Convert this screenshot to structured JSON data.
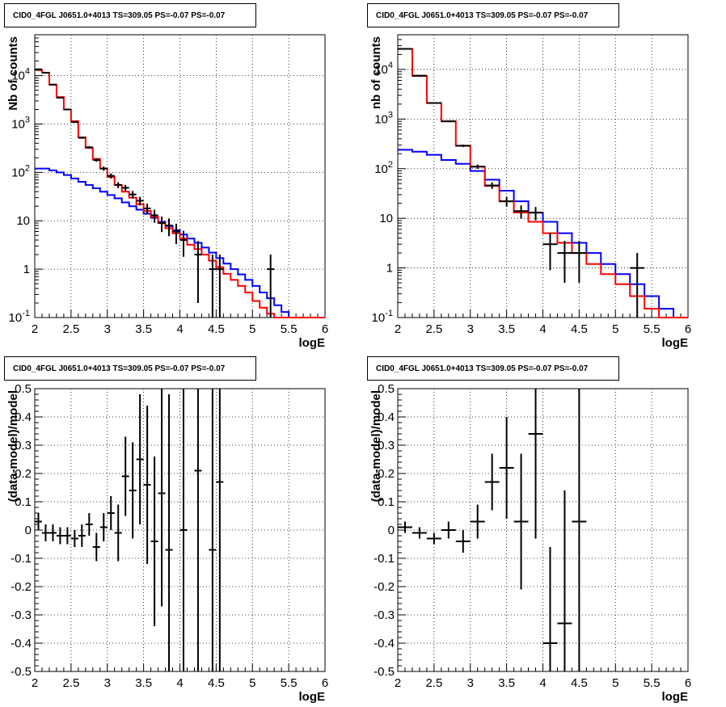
{
  "panels": [
    {
      "title": "CID0_4FGL J0651.0+4013 TS=309.05 PS=-0.07 PS=-0.07",
      "xlabel": "logE",
      "ylabel": "Nb of counts"
    },
    {
      "title": "CID0_4FGL J0651.0+4013 TS=309.05 PS=-0.07 PS=-0.07",
      "xlabel": "logE",
      "ylabel": "nb of counts"
    },
    {
      "title": "CID0_4FGL J0651.0+4013 TS=309.05 PS=-0.07 PS=-0.07",
      "xlabel": "logE",
      "ylabel": "(data-model)/model"
    },
    {
      "title": "CID0_4FGL J0651.0+4013 TS=309.05 PS=-0.07 PS=-0.07",
      "xlabel": "logE",
      "ylabel": "(data-model)/model"
    }
  ],
  "chart_data": [
    {
      "type": "line",
      "title": "CID0_4FGL J0651.0+4013 TS=309.05 PS=-0.07 PS=-0.07",
      "xlabel": "logE",
      "ylabel": "Nb of counts",
      "xlim": [
        2,
        6
      ],
      "ylim": [
        0.1,
        70000
      ],
      "yscale": "log",
      "grid": true,
      "xticks": [
        "2",
        "2.5",
        "3",
        "3.5",
        "4",
        "4.5",
        "5",
        "5.5",
        "6"
      ],
      "yticks": [
        "10^-1",
        "1",
        "10",
        "10^2",
        "10^3",
        "10^4"
      ],
      "colors": {
        "total": "#ff0000",
        "background": "#0000ff",
        "data": "#000000"
      },
      "bin_edges": [
        2.0,
        2.1,
        2.2,
        2.3,
        2.4,
        2.5,
        2.6,
        2.7,
        2.8,
        2.9,
        3.0,
        3.1,
        3.2,
        3.3,
        3.4,
        3.5,
        3.6,
        3.7,
        3.8,
        3.9,
        4.0,
        4.1,
        4.2,
        4.3,
        4.4,
        4.5,
        4.6,
        4.7,
        4.8,
        4.9,
        5.0,
        5.1,
        5.2,
        5.3,
        5.4,
        5.5,
        5.6,
        5.7,
        5.8,
        5.9,
        6.0
      ],
      "series": [
        {
          "type": "step",
          "values": [
            13000,
            11500,
            6500,
            3600,
            2000,
            1150,
            530,
            320,
            190,
            120,
            80,
            55,
            40,
            30,
            22,
            16,
            12,
            9,
            7,
            5.5,
            4.3,
            3.2,
            2.6,
            2.0,
            1.5,
            1.1,
            0.8,
            0.6,
            0.45,
            0.33,
            0.22,
            0.16,
            0.12,
            0.1,
            0.1,
            0.1,
            0.1,
            0.1,
            0.1,
            0.1
          ]
        },
        {
          "type": "step",
          "values": [
            120,
            120,
            110,
            100,
            88,
            75,
            64,
            55,
            47,
            40,
            34,
            29,
            24,
            20,
            17,
            14,
            11.5,
            9.5,
            7.8,
            6.4,
            5.2,
            4.3,
            3.5,
            2.8,
            2.2,
            1.7,
            1.3,
            1.0,
            0.78,
            0.6,
            0.45,
            0.33,
            0.25,
            0.18,
            0.13,
            0.1,
            0.1,
            0.1,
            0.1,
            0.1
          ]
        },
        {
          "type": "points",
          "x": [
            2.05,
            2.15,
            2.25,
            2.35,
            2.45,
            2.55,
            2.65,
            2.75,
            2.85,
            2.95,
            3.05,
            3.15,
            3.25,
            3.35,
            3.45,
            3.55,
            3.65,
            3.75,
            3.85,
            3.95,
            4.05,
            4.25,
            4.45,
            4.55,
            5.25
          ],
          "y": [
            13500,
            11500,
            6500,
            3500,
            2000,
            1100,
            520,
            330,
            180,
            120,
            85,
            55,
            48,
            35,
            26,
            18,
            13,
            9,
            8,
            6,
            4,
            2,
            1,
            1,
            1
          ],
          "err_low": [
            0.01,
            0.01,
            0.01,
            0.02,
            0.02,
            0.03,
            0.05,
            0.06,
            0.08,
            0.1,
            0.12,
            0.14,
            0.15,
            0.18,
            0.2,
            0.25,
            0.3,
            0.35,
            0.4,
            0.45,
            0.55,
            0.9,
            0.99,
            0.99,
            0.99
          ],
          "err_high": [
            0.01,
            0.01,
            0.01,
            0.02,
            0.02,
            0.03,
            0.05,
            0.06,
            0.08,
            0.1,
            0.12,
            0.14,
            0.15,
            0.18,
            0.2,
            0.25,
            0.3,
            0.35,
            0.4,
            0.45,
            0.55,
            0.9,
            1.0,
            1.0,
            1.0
          ]
        }
      ]
    },
    {
      "type": "line",
      "title": "CID0_4FGL J0651.0+4013 TS=309.05 PS=-0.07 PS=-0.07",
      "xlabel": "logE",
      "ylabel": "nb of counts",
      "xlim": [
        2,
        6
      ],
      "ylim": [
        0.1,
        50000
      ],
      "yscale": "log",
      "grid": true,
      "xticks": [
        "2",
        "2.5",
        "3",
        "3.5",
        "4",
        "4.5",
        "5",
        "5.5",
        "6"
      ],
      "yticks": [
        "10^-1",
        "1",
        "10",
        "10^2",
        "10^3",
        "10^4"
      ],
      "colors": {
        "total": "#ff0000",
        "background": "#0000ff",
        "data": "#000000"
      },
      "bin_edges": [
        2.0,
        2.2,
        2.4,
        2.6,
        2.8,
        3.0,
        3.2,
        3.4,
        3.6,
        3.8,
        4.0,
        4.2,
        4.4,
        4.6,
        4.8,
        5.0,
        5.2,
        5.4,
        5.6,
        5.8,
        6.0
      ],
      "series": [
        {
          "type": "step",
          "values": [
            26000,
            7400,
            2100,
            900,
            290,
            110,
            45,
            22,
            13,
            8.5,
            5,
            3.2,
            2.0,
            1.2,
            0.75,
            0.47,
            0.27,
            0.15,
            0.1,
            0.1
          ]
        },
        {
          "type": "step",
          "values": [
            240,
            220,
            190,
            150,
            125,
            90,
            60,
            36,
            22,
            13,
            8.5,
            5,
            3.2,
            2.0,
            1.2,
            0.75,
            0.47,
            0.27,
            0.15,
            0.1
          ]
        },
        {
          "type": "points",
          "x": [
            2.1,
            2.3,
            2.5,
            2.7,
            2.9,
            3.1,
            3.3,
            3.5,
            3.7,
            3.9,
            4.1,
            4.3,
            4.5,
            5.3
          ],
          "y": [
            26000,
            7500,
            2100,
            900,
            290,
            110,
            46,
            22,
            14,
            13,
            3,
            2,
            2,
            1
          ],
          "err_low": [
            0.01,
            0.01,
            0.02,
            0.03,
            0.06,
            0.1,
            0.15,
            0.22,
            0.3,
            0.3,
            0.7,
            0.75,
            0.75,
            0.99
          ],
          "err_high": [
            0.01,
            0.01,
            0.02,
            0.03,
            0.06,
            0.1,
            0.15,
            0.22,
            0.3,
            0.3,
            0.7,
            0.75,
            0.75,
            1.0
          ]
        }
      ]
    },
    {
      "type": "scatter",
      "title": "CID0_4FGL J0651.0+4013 TS=309.05 PS=-0.07 PS=-0.07",
      "xlabel": "logE",
      "ylabel": "(data-model)/model",
      "xlim": [
        2,
        6
      ],
      "ylim": [
        -0.5,
        0.5
      ],
      "grid": true,
      "xticks": [
        "2",
        "2.5",
        "3",
        "3.5",
        "4",
        "4.5",
        "5",
        "5.5",
        "6"
      ],
      "yticks": [
        "-0.5",
        "-0.4",
        "-0.3",
        "-0.2",
        "-0.1",
        "0",
        "0.1",
        "0.2",
        "0.3",
        "0.4",
        "0.5"
      ],
      "series": [
        {
          "x": [
            2.05,
            2.15,
            2.25,
            2.35,
            2.45,
            2.55,
            2.65,
            2.75,
            2.85,
            2.95,
            3.05,
            3.15,
            3.25,
            3.35,
            3.45,
            3.55,
            3.65,
            3.75,
            3.85,
            4.05,
            4.25,
            4.45,
            4.55
          ],
          "y": [
            0.03,
            -0.01,
            -0.01,
            -0.02,
            -0.02,
            -0.03,
            -0.02,
            0.02,
            -0.06,
            0.01,
            0.06,
            -0.01,
            0.19,
            0.14,
            0.25,
            0.16,
            -0.04,
            0.13,
            -0.07,
            0.0,
            0.21,
            -0.07,
            0.17
          ],
          "err": [
            0.03,
            0.03,
            0.03,
            0.03,
            0.03,
            0.03,
            0.04,
            0.04,
            0.05,
            0.05,
            0.06,
            0.1,
            0.14,
            0.17,
            0.23,
            0.28,
            0.3,
            0.4,
            0.55,
            0.75,
            0.95,
            1.2,
            1.2
          ]
        }
      ]
    },
    {
      "type": "scatter",
      "title": "CID0_4FGL J0651.0+4013 TS=309.05 PS=-0.07 PS=-0.07",
      "xlabel": "logE",
      "ylabel": "(data-model)/model",
      "xlim": [
        2,
        6
      ],
      "ylim": [
        -0.5,
        0.5
      ],
      "grid": true,
      "xticks": [
        "2",
        "2.5",
        "3",
        "3.5",
        "4",
        "4.5",
        "5",
        "5.5",
        "6"
      ],
      "yticks": [
        "-0.5",
        "-0.4",
        "-0.3",
        "-0.2",
        "-0.1",
        "0",
        "0.1",
        "0.2",
        "0.3",
        "0.4",
        "0.5"
      ],
      "series": [
        {
          "x": [
            2.1,
            2.3,
            2.5,
            2.7,
            2.9,
            3.1,
            3.3,
            3.5,
            3.7,
            3.9,
            4.1,
            4.3,
            4.5
          ],
          "y": [
            0.01,
            -0.01,
            -0.03,
            0.0,
            -0.04,
            0.03,
            0.17,
            0.22,
            0.03,
            0.34,
            -0.4,
            -0.33,
            0.03
          ],
          "err": [
            0.02,
            0.02,
            0.02,
            0.03,
            0.04,
            0.06,
            0.1,
            0.18,
            0.24,
            0.37,
            0.34,
            0.47,
            0.55
          ]
        }
      ]
    }
  ]
}
